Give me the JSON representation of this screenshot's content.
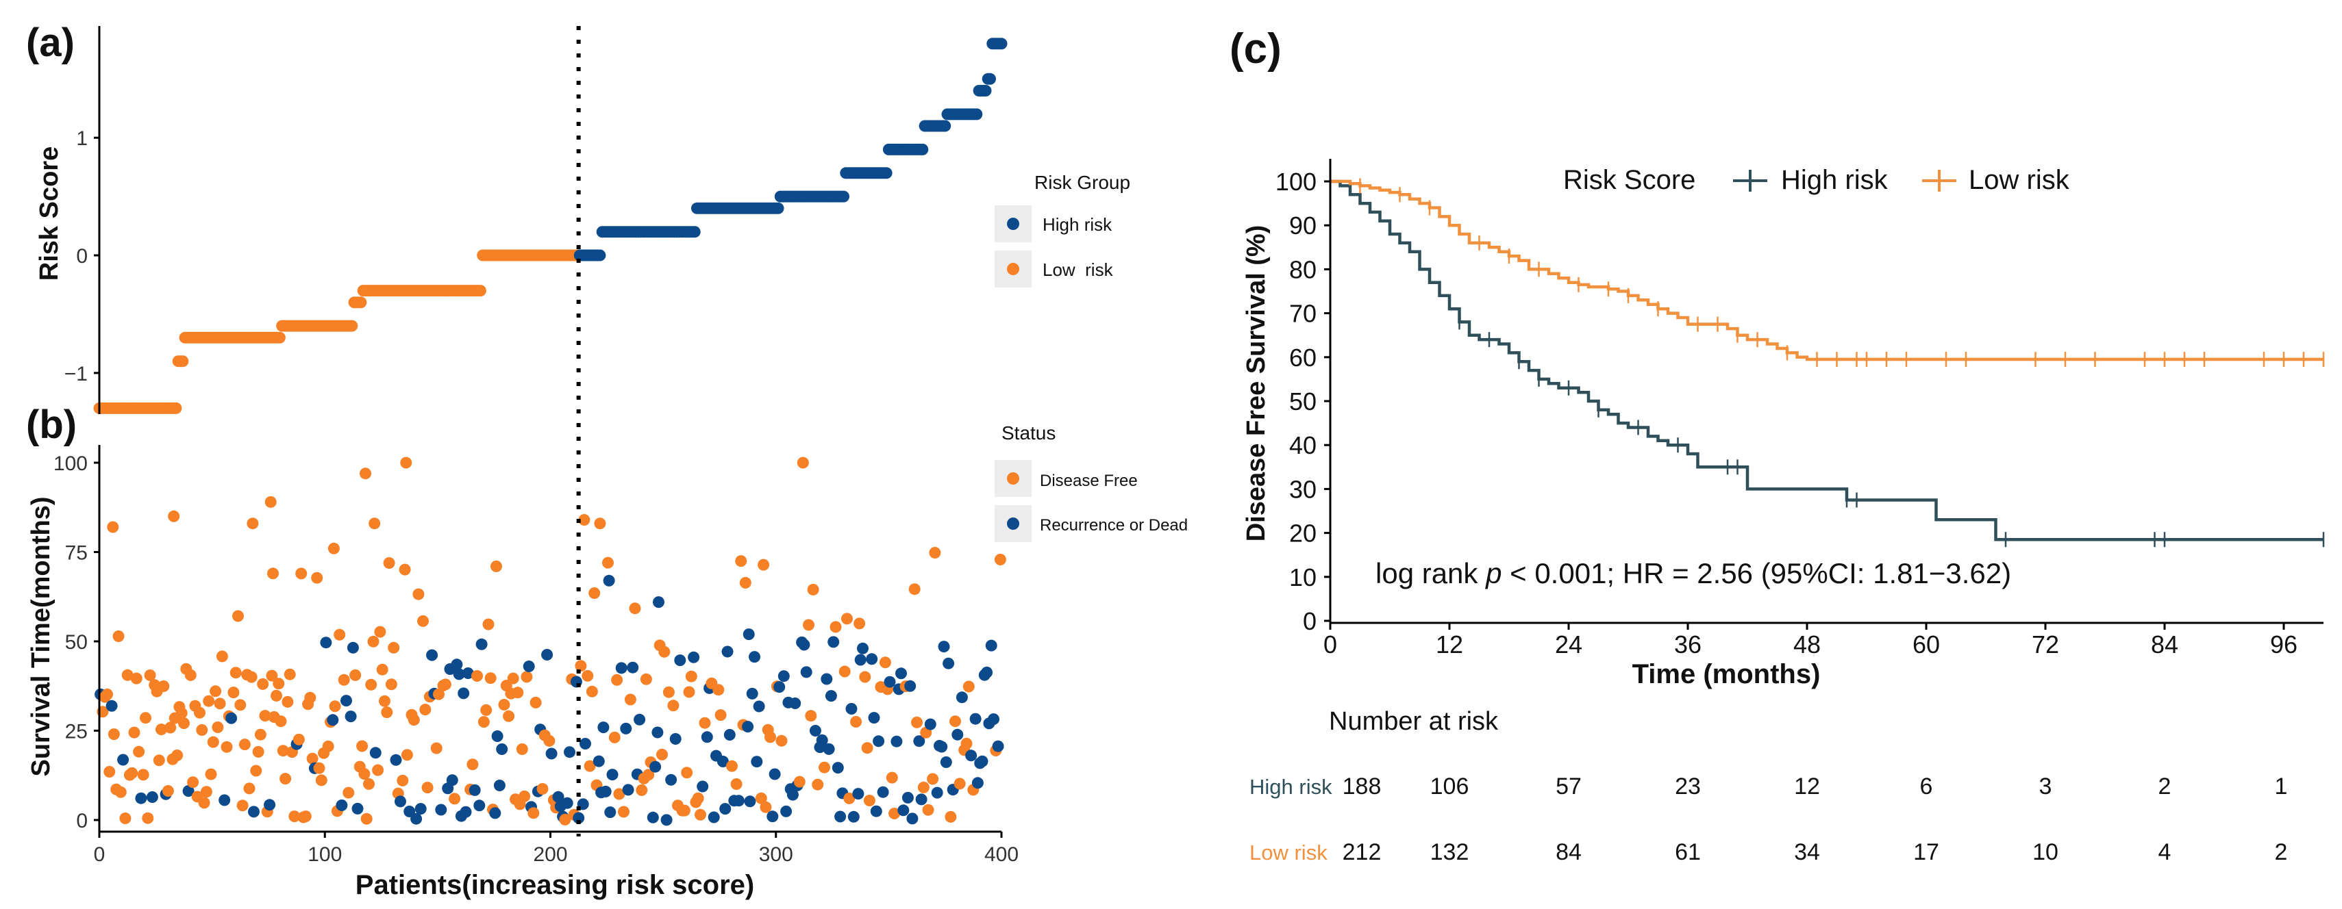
{
  "panels": {
    "a_label": "(a)",
    "b_label": "(b)",
    "c_label": "(c)"
  },
  "chart_data": [
    {
      "id": "a",
      "type": "scatter",
      "ylabel": "Risk Score",
      "xlim": [
        0,
        400
      ],
      "ylim": [
        -1.35,
        1.95
      ],
      "yticks": [
        -1,
        0,
        1
      ],
      "ytick_labels": [
        "−1",
        "0",
        "1"
      ],
      "cutoff_patient": 212,
      "legend": {
        "title": "Risk Group",
        "items": [
          {
            "label": "High risk",
            "color": "#0D4A8C"
          },
          {
            "label": "Low  risk",
            "color": "#F58025"
          }
        ]
      },
      "risk_steps": [
        [
          0,
          34,
          -1.3
        ],
        [
          35,
          37,
          -0.9
        ],
        [
          38,
          80,
          -0.7
        ],
        [
          81,
          112,
          -0.6
        ],
        [
          113,
          116,
          -0.4
        ],
        [
          117,
          169,
          -0.3
        ],
        [
          170,
          212,
          0.0
        ],
        [
          213,
          222,
          0.0
        ],
        [
          223,
          264,
          0.2
        ],
        [
          265,
          301,
          0.4
        ],
        [
          302,
          330,
          0.5
        ],
        [
          331,
          349,
          0.7
        ],
        [
          350,
          365,
          0.9
        ],
        [
          366,
          375,
          1.1
        ],
        [
          376,
          389,
          1.2
        ],
        [
          390,
          393,
          1.4
        ],
        [
          394,
          395,
          1.5
        ],
        [
          396,
          400,
          1.8
        ]
      ]
    },
    {
      "id": "b",
      "type": "scatter",
      "ylabel": "Survival Time(months)",
      "xlabel": "Patients(increasing risk score)",
      "xlim": [
        0,
        400
      ],
      "ylim": [
        0,
        100
      ],
      "xticks": [
        0,
        100,
        200,
        300,
        400
      ],
      "yticks": [
        0,
        25,
        50,
        75,
        100
      ],
      "legend": {
        "title": "Status",
        "items": [
          {
            "label": "Disease Free",
            "color": "#F58025"
          },
          {
            "label": "Recurrence or Dead",
            "color": "#0D4A8C"
          }
        ]
      },
      "highlight_points": [
        {
          "x": 6,
          "y": 82,
          "status": "Disease Free"
        },
        {
          "x": 33,
          "y": 85,
          "status": "Disease Free"
        },
        {
          "x": 68,
          "y": 83,
          "status": "Disease Free"
        },
        {
          "x": 76,
          "y": 89,
          "status": "Disease Free"
        },
        {
          "x": 118,
          "y": 97,
          "status": "Disease Free"
        },
        {
          "x": 136,
          "y": 100,
          "status": "Disease Free"
        },
        {
          "x": 122,
          "y": 83,
          "status": "Disease Free"
        },
        {
          "x": 215,
          "y": 84,
          "status": "Disease Free"
        },
        {
          "x": 222,
          "y": 83,
          "status": "Disease Free"
        },
        {
          "x": 312,
          "y": 100,
          "status": "Disease Free"
        },
        {
          "x": 226,
          "y": 67,
          "status": "Recurrence or Dead"
        },
        {
          "x": 248,
          "y": 61,
          "status": "Recurrence or Dead"
        },
        {
          "x": 288,
          "y": 52,
          "status": "Recurrence or Dead"
        },
        {
          "x": 104,
          "y": 76,
          "status": "Disease Free"
        },
        {
          "x": 176,
          "y": 71,
          "status": "Disease Free"
        },
        {
          "x": 77,
          "y": 69,
          "status": "Disease Free"
        },
        {
          "x": 337,
          "y": 55,
          "status": "Disease Free"
        }
      ]
    },
    {
      "id": "c",
      "type": "line",
      "title": "",
      "xlabel": "Time (months)",
      "ylabel": "Disease Free Survival (%)",
      "xlim": [
        0,
        100
      ],
      "ylim": [
        0,
        100
      ],
      "xticks": [
        0,
        12,
        24,
        36,
        48,
        60,
        72,
        84,
        96
      ],
      "yticks": [
        0,
        10,
        20,
        30,
        40,
        50,
        60,
        70,
        80,
        90,
        100
      ],
      "legend_title": "Risk Score",
      "annotation_prefix": "log rank ",
      "annotation_italic": "p",
      "annotation_suffix": " < 0.001; HR = 2.56 (95%CI: 1.81−3.62)",
      "series": [
        {
          "name": "High risk",
          "color": "#2F4F5A",
          "steps": [
            [
              0,
              100
            ],
            [
              1,
              99
            ],
            [
              2,
              97
            ],
            [
              3,
              95
            ],
            [
              4,
              93
            ],
            [
              5,
              91
            ],
            [
              6,
              88
            ],
            [
              7,
              86
            ],
            [
              8,
              84
            ],
            [
              9,
              80
            ],
            [
              10,
              77
            ],
            [
              11,
              74
            ],
            [
              12,
              71
            ],
            [
              13,
              68
            ],
            [
              14,
              65
            ],
            [
              15,
              64
            ],
            [
              17,
              63
            ],
            [
              18,
              61
            ],
            [
              19,
              59
            ],
            [
              20,
              57
            ],
            [
              21,
              55
            ],
            [
              22,
              54
            ],
            [
              23,
              53
            ],
            [
              25,
              52
            ],
            [
              26,
              50
            ],
            [
              27,
              48
            ],
            [
              28,
              47
            ],
            [
              29,
              45
            ],
            [
              30,
              44
            ],
            [
              32,
              42
            ],
            [
              33,
              41
            ],
            [
              34,
              40
            ],
            [
              36,
              38
            ],
            [
              37,
              35
            ],
            [
              42,
              30
            ],
            [
              52,
              27.5
            ],
            [
              61,
              23
            ],
            [
              67,
              18.5
            ],
            [
              100,
              18.5
            ]
          ],
          "censors": [
            13,
            16,
            19,
            21,
            24,
            27,
            31,
            35,
            40,
            41,
            52,
            53,
            68,
            83,
            84,
            100
          ]
        },
        {
          "name": "Low risk",
          "color": "#F2913D",
          "steps": [
            [
              0,
              100
            ],
            [
              2,
              99.5
            ],
            [
              3,
              99
            ],
            [
              4,
              98.5
            ],
            [
              5,
              98
            ],
            [
              6,
              97.5
            ],
            [
              7,
              97
            ],
            [
              8,
              96
            ],
            [
              9,
              95
            ],
            [
              10,
              94
            ],
            [
              11,
              92
            ],
            [
              12,
              90
            ],
            [
              13,
              88
            ],
            [
              14,
              86
            ],
            [
              16,
              85
            ],
            [
              17,
              84
            ],
            [
              18,
              83
            ],
            [
              19,
              82
            ],
            [
              20,
              80
            ],
            [
              22,
              79
            ],
            [
              23,
              78
            ],
            [
              24,
              77
            ],
            [
              25,
              76.5
            ],
            [
              26,
              76
            ],
            [
              28,
              75.5
            ],
            [
              29,
              75
            ],
            [
              30,
              74
            ],
            [
              31,
              73
            ],
            [
              32,
              72
            ],
            [
              33,
              71
            ],
            [
              34,
              70
            ],
            [
              35,
              69
            ],
            [
              36,
              67.5
            ],
            [
              40,
              66.5
            ],
            [
              41,
              65
            ],
            [
              42,
              64
            ],
            [
              44,
              63
            ],
            [
              45,
              62
            ],
            [
              46,
              61
            ],
            [
              47,
              60
            ],
            [
              48,
              59.5
            ],
            [
              100,
              59.5
            ]
          ],
          "censors": [
            3,
            7,
            10,
            15,
            18,
            21,
            25,
            28,
            30,
            33,
            37,
            39,
            41,
            43,
            46,
            49,
            51,
            53,
            54,
            56,
            58,
            62,
            64,
            71,
            74,
            77,
            82,
            84,
            86,
            88,
            94,
            96,
            98,
            100
          ]
        }
      ],
      "risk_table": {
        "title": "Number at risk",
        "times": [
          0,
          12,
          24,
          36,
          48,
          60,
          72,
          84,
          96
        ],
        "rows": [
          {
            "label": "High risk",
            "color": "#2F4F5A",
            "values": [
              188,
              106,
              57,
              23,
              12,
              6,
              3,
              2,
              1
            ]
          },
          {
            "label": "Low risk",
            "color": "#F2913D",
            "values": [
              212,
              132,
              84,
              61,
              34,
              17,
              10,
              4,
              2
            ]
          }
        ]
      }
    }
  ]
}
